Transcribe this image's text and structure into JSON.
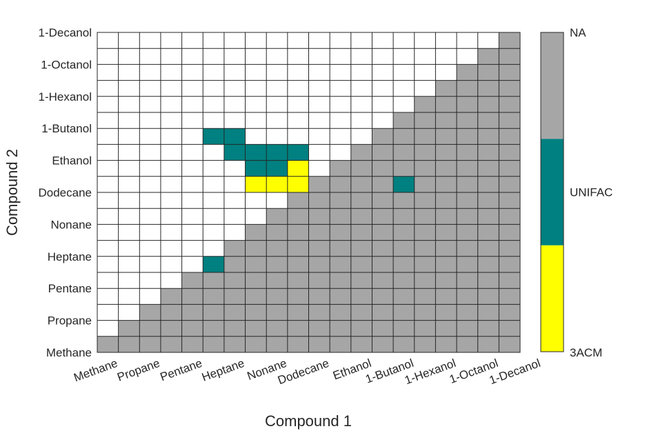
{
  "chart_data": {
    "type": "heatmap",
    "title": "",
    "xlabel": "Compound 1",
    "ylabel": "Compound 2",
    "grid": true,
    "x_tick_labels": [
      "Methane",
      "Propane",
      "Pentane",
      "Heptane",
      "Nonane",
      "Dodecane",
      "Ethanol",
      "1-Butanol",
      "1-Hexanol",
      "1-Octanol",
      "1-Decanol"
    ],
    "y_tick_labels": [
      "Methane",
      "Propane",
      "Pentane",
      "Heptane",
      "Nonane",
      "Dodecane",
      "Ethanol",
      "1-Butanol",
      "1-Hexanol",
      "1-Octanol",
      "1-Decanol"
    ],
    "cols": 20,
    "rows": 20,
    "categories": {
      "3ACM": "#ffff00",
      "UNIFAC": "#008080",
      "NA": "#a6a6a6",
      "default": "#ffffff"
    },
    "colorbar": {
      "labels": [
        "3ACM",
        "UNIFAC",
        "NA"
      ],
      "colors": [
        "#ffff00",
        "#008080",
        "#a6a6a6"
      ],
      "position": "right"
    },
    "na_region": "lower-right triangle (col >= row)",
    "unifac_cells": [
      [
        5,
        5
      ],
      [
        10,
        14
      ],
      [
        13,
        5
      ],
      [
        13,
        6
      ],
      [
        12,
        6
      ],
      [
        12,
        7
      ],
      [
        12,
        8
      ],
      [
        12,
        9
      ],
      [
        11,
        7
      ],
      [
        11,
        8
      ]
    ],
    "3acm_cells": [
      [
        11,
        9
      ],
      [
        10,
        7
      ],
      [
        10,
        8
      ],
      [
        10,
        9
      ]
    ]
  }
}
